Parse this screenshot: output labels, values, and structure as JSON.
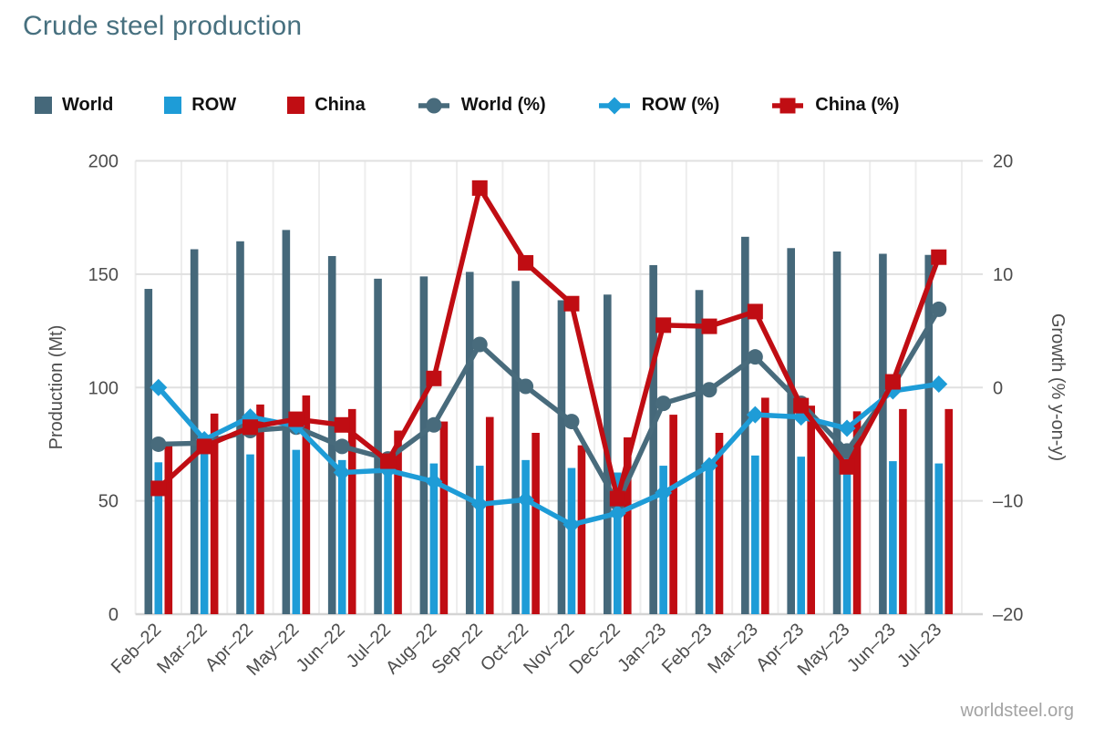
{
  "page": {
    "title": "Crude steel production",
    "watermark": "worldsteel.org"
  },
  "colors": {
    "world_bar": "#45687a",
    "row_bar": "#1e9cd7",
    "china_bar": "#c00d13",
    "world_line": "#486b7c",
    "row_line": "#1e9cd7",
    "china_line": "#c00d13",
    "grid_h": "#e0e0e0",
    "grid_v": "#ededed",
    "axis_line": "#d4d4d4",
    "title": "#47707f"
  },
  "legend": [
    {
      "id": "world",
      "label": "World",
      "glyph": "bar",
      "color": "#45687a"
    },
    {
      "id": "row",
      "label": "ROW",
      "glyph": "bar",
      "color": "#1e9cd7"
    },
    {
      "id": "china",
      "label": "China",
      "glyph": "bar",
      "color": "#c00d13"
    },
    {
      "id": "world-pct",
      "label": "World (%)",
      "glyph": "line-circle",
      "color": "#486b7c"
    },
    {
      "id": "row-pct",
      "label": "ROW (%)",
      "glyph": "line-diamond",
      "color": "#1e9cd7"
    },
    {
      "id": "china-pct",
      "label": "China (%)",
      "glyph": "line-square",
      "color": "#c00d13"
    }
  ],
  "chart_data": {
    "type": "bar+line combo (dual axis)",
    "categories": [
      "Feb–22",
      "Mar–22",
      "Apr–22",
      "May–22",
      "Jun–22",
      "Jul–22",
      "Aug–22",
      "Sep–22",
      "Oct–22",
      "Nov–22",
      "Dec–22",
      "Jan–23",
      "Feb–23",
      "Mar–23",
      "Apr–23",
      "May–23",
      "Jun–23",
      "Jul–23"
    ],
    "bar_series": [
      {
        "name": "World",
        "axis": "left",
        "color": "#45687a",
        "values": [
          143.5,
          161,
          164.5,
          169.5,
          158,
          148,
          149,
          151,
          147,
          138.5,
          141,
          154,
          143,
          166.5,
          161.5,
          160,
          159,
          158.5
        ]
      },
      {
        "name": "ROW",
        "axis": "left",
        "color": "#1e9cd7",
        "values": [
          67,
          71,
          70.5,
          72.5,
          68,
          65,
          66.5,
          65.5,
          68,
          64.5,
          62.5,
          65.5,
          64,
          70,
          69.5,
          70.5,
          67.5,
          66.5
        ]
      },
      {
        "name": "China",
        "axis": "left",
        "color": "#c00d13",
        "values": [
          75,
          88.5,
          92.5,
          96.5,
          90.5,
          81,
          85,
          87,
          80,
          74.5,
          78,
          88,
          80,
          95.5,
          92,
          89.5,
          90.5,
          90.5
        ]
      }
    ],
    "line_series": [
      {
        "name": "World (%)",
        "axis": "right",
        "marker": "circle",
        "color": "#486b7c",
        "values": [
          -5.0,
          -4.9,
          -3.8,
          -3.5,
          -5.2,
          -6.3,
          -3.3,
          3.8,
          0.1,
          -3.0,
          -10.2,
          -1.4,
          -0.2,
          2.7,
          -1.4,
          -5.6,
          0.1,
          6.9
        ]
      },
      {
        "name": "ROW (%)",
        "axis": "right",
        "marker": "diamond",
        "color": "#1e9cd7",
        "values": [
          0.0,
          -4.6,
          -2.6,
          -3.4,
          -7.5,
          -7.3,
          -8.3,
          -10.3,
          -9.9,
          -12.1,
          -11.1,
          -9.3,
          -6.9,
          -2.4,
          -2.6,
          -3.6,
          -0.3,
          0.3
        ]
      },
      {
        "name": "China (%)",
        "axis": "right",
        "marker": "square",
        "color": "#c00d13",
        "values": [
          -8.9,
          -5.2,
          -3.5,
          -2.8,
          -3.3,
          -6.5,
          0.8,
          17.6,
          11.0,
          7.4,
          -9.8,
          5.5,
          5.4,
          6.7,
          -1.6,
          -7.0,
          0.5,
          11.5
        ]
      }
    ],
    "left_axis": {
      "title": "Production (Mt)",
      "range": [
        0,
        200
      ],
      "ticks": [
        0,
        50,
        100,
        150,
        200
      ],
      "tick_labels": [
        "0",
        "50",
        "100",
        "150",
        "200"
      ]
    },
    "right_axis": {
      "title": "Growth (% y-on-y)",
      "range": [
        -20,
        20
      ],
      "ticks": [
        -20,
        -10,
        0,
        10,
        20
      ],
      "tick_labels": [
        "–20",
        "–10",
        "0",
        "10",
        "20"
      ]
    },
    "grid": {
      "horizontal": true,
      "vertical": true
    },
    "legend_position": "top"
  }
}
